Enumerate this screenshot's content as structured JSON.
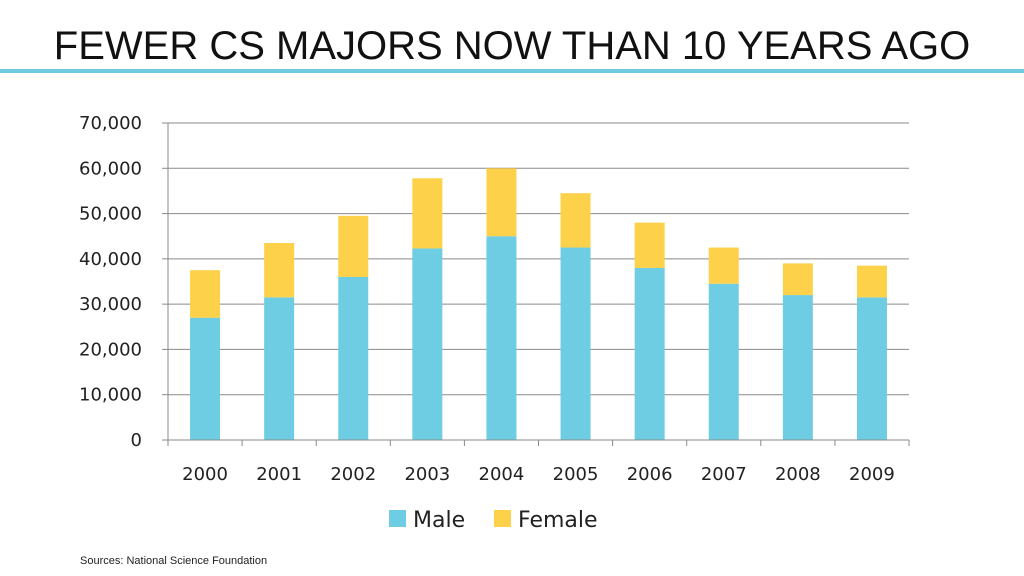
{
  "slide": {
    "title": "FEWER CS MAJORS NOW THAN 10 YEARS AGO",
    "source": "Sources: National Science Foundation",
    "accent_color": "#6ecbe0"
  },
  "chart_data": {
    "type": "bar",
    "stacked": true,
    "categories": [
      "2000",
      "2001",
      "2002",
      "2003",
      "2004",
      "2005",
      "2006",
      "2007",
      "2008",
      "2009"
    ],
    "series": [
      {
        "name": "Male",
        "color": "#6ecde2",
        "values": [
          27000,
          31500,
          36000,
          42300,
          45000,
          42500,
          38000,
          34500,
          32000,
          31500
        ]
      },
      {
        "name": "Female",
        "color": "#fdd14a",
        "values": [
          10500,
          12000,
          13500,
          15500,
          15000,
          12000,
          10000,
          8000,
          7000,
          7000
        ]
      }
    ],
    "ylim": [
      0,
      70000
    ],
    "yticks": [
      0,
      10000,
      20000,
      30000,
      40000,
      50000,
      60000,
      70000
    ],
    "ytick_labels": [
      "0",
      "10,000",
      "20,000",
      "30,000",
      "40,000",
      "50,000",
      "60,000",
      "70,000"
    ],
    "grid": true,
    "legend": "bottom",
    "title": "",
    "xlabel": "",
    "ylabel": ""
  }
}
